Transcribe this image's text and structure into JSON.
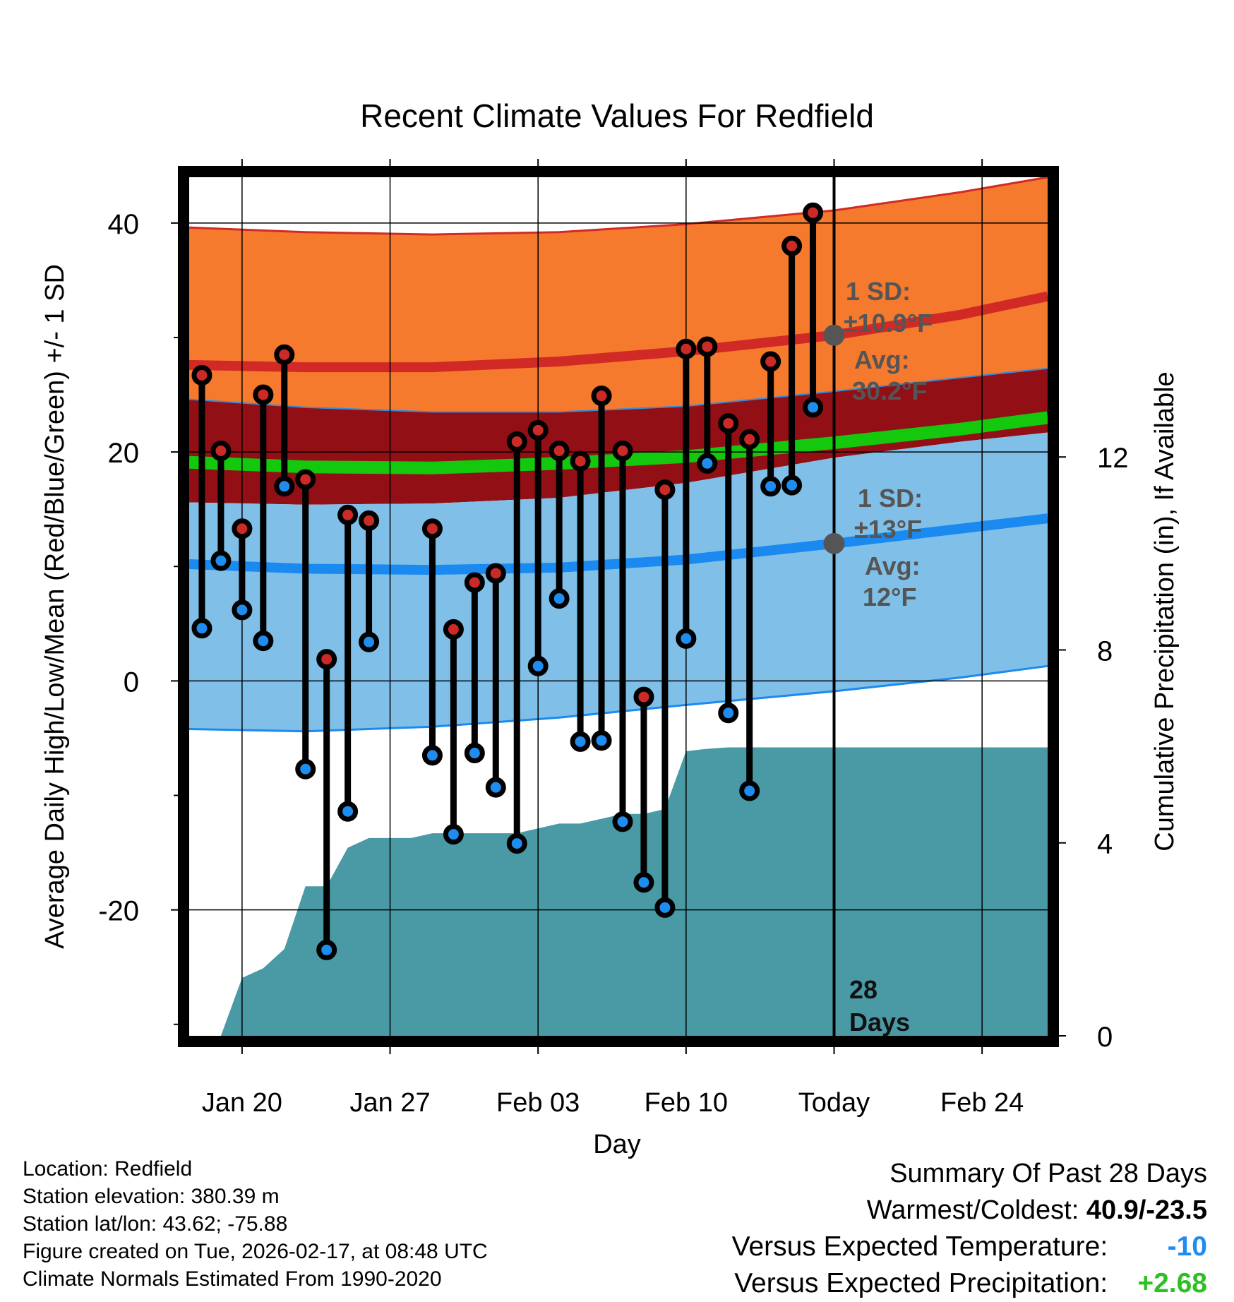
{
  "chart_data": {
    "type": "line",
    "title": "Recent Climate Values For Redfield",
    "xlabel": "Day",
    "ylabel": "Average Daily High/Low/Mean (Red/Blue/Green) +/- 1 SD",
    "y2label": "Cumulative Precipitation (in), If Available",
    "ylim": [
      -31,
      44
    ],
    "y2lim": [
      0,
      17.8
    ],
    "yticks": [
      -20,
      0,
      20,
      40
    ],
    "y2ticks": [
      0,
      4,
      8,
      12
    ],
    "xlim": [
      -2.5,
      38.1
    ],
    "xticks": [
      {
        "x": 0,
        "label": "Jan 20"
      },
      {
        "x": 7,
        "label": "Jan 27"
      },
      {
        "x": 14,
        "label": "Feb 03"
      },
      {
        "x": 21,
        "label": "Feb 10"
      },
      {
        "x": 28,
        "label": "Today"
      },
      {
        "x": 35,
        "label": "Feb 24"
      }
    ],
    "today_x": 28,
    "normals": {
      "x": [
        -2.5,
        3,
        9,
        15,
        21,
        28,
        34,
        38.1
      ],
      "high_avg": [
        27.6,
        27.4,
        27.4,
        27.9,
        28.8,
        30.2,
        32.0,
        33.6
      ],
      "high_sd_upper": [
        39.6,
        39.2,
        39.0,
        39.2,
        39.9,
        41.1,
        42.7,
        44.0
      ],
      "high_sd_lower": [
        24.6,
        23.9,
        23.5,
        23.5,
        24.0,
        25.3,
        26.5,
        27.3
      ],
      "mean_avg": [
        19.1,
        18.7,
        18.6,
        19.0,
        19.6,
        20.8,
        22.0,
        23.0
      ],
      "low_avg": [
        10.2,
        9.8,
        9.7,
        9.9,
        10.6,
        12.0,
        13.3,
        14.2
      ],
      "low_sd_upper": [
        15.6,
        15.4,
        15.5,
        16.0,
        17.3,
        19.5,
        20.9,
        21.7
      ],
      "low_sd_lower": [
        -4.2,
        -4.4,
        -4.0,
        -3.2,
        -2.1,
        -0.9,
        0.3,
        1.3
      ]
    },
    "series": [
      {
        "name": "Daily High",
        "color": "#cc2a26",
        "x": [
          -1.9,
          -1,
          0,
          1,
          2,
          3,
          4,
          5,
          6,
          9,
          10,
          11,
          12,
          13,
          14,
          15,
          16,
          17,
          18,
          19,
          20,
          21,
          22,
          23,
          24,
          25,
          26,
          27
        ],
        "values": [
          26.7,
          20.1,
          13.3,
          25.0,
          28.5,
          17.6,
          1.9,
          14.5,
          14.0,
          13.3,
          4.5,
          8.6,
          9.4,
          20.9,
          21.9,
          20.1,
          19.2,
          24.9,
          20.1,
          -1.4,
          16.7,
          29.0,
          29.2,
          22.5,
          21.1,
          27.9,
          38.0,
          40.9
        ]
      },
      {
        "name": "Daily Low",
        "color": "#1f8cf0",
        "x": [
          -1.9,
          -1,
          0,
          1,
          2,
          3,
          4,
          5,
          6,
          9,
          10,
          11,
          12,
          13,
          14,
          15,
          16,
          17,
          18,
          19,
          20,
          21,
          22,
          23,
          24,
          25,
          26,
          27
        ],
        "values": [
          4.6,
          10.5,
          6.2,
          3.5,
          17.0,
          -7.7,
          -23.5,
          -11.4,
          3.4,
          -6.5,
          -13.4,
          -6.3,
          -9.3,
          -14.2,
          1.3,
          7.2,
          -5.3,
          -5.2,
          -12.3,
          -17.6,
          -19.8,
          3.7,
          19.0,
          -2.8,
          -9.6,
          17.0,
          17.1,
          23.9
        ]
      },
      {
        "name": "Cumulative Precipitation",
        "color": "#4a9aa5",
        "x": [
          -1,
          0,
          1,
          2,
          3,
          4,
          5,
          6,
          7,
          8,
          9,
          10,
          11,
          12,
          13,
          14,
          15,
          16,
          17,
          18,
          19,
          20,
          21,
          22,
          23,
          24,
          25,
          26,
          27,
          28,
          38.1
        ],
        "values": [
          0,
          1.2,
          1.4,
          1.8,
          3.1,
          3.1,
          3.9,
          4.1,
          4.1,
          4.1,
          4.2,
          4.2,
          4.2,
          4.2,
          4.2,
          4.3,
          4.4,
          4.4,
          4.5,
          4.6,
          4.6,
          4.7,
          5.9,
          5.95,
          5.98,
          5.98,
          5.98,
          5.98,
          5.98,
          5.98,
          5.98
        ]
      }
    ],
    "annotations": {
      "high_sd_label": "1 SD:",
      "high_sd_value": "±10.9°F",
      "high_avg_label": "Avg:",
      "high_avg_value": "30.2°F",
      "low_sd_label": "1 SD:",
      "low_sd_value": "±13°F",
      "low_avg_label": "Avg:",
      "low_avg_value": "12°F",
      "days_number": "28",
      "days_label": "Days",
      "high_today_avg": 30.2,
      "low_today_avg": 12
    },
    "colors": {
      "high_band": "#f57a2e",
      "high_line": "#d12a26",
      "mid_band": "#930f16",
      "mean_line": "#14c80e",
      "low_band": "#80c0e8",
      "low_line": "#1a8af0",
      "precip": "#4a9aa5",
      "label_gray": "#555555"
    }
  },
  "metadata_lines": [
    "Location: Redfield",
    "Station elevation: 380.39 m",
    "Station lat/lon: 43.62; -75.88",
    "Figure created on Tue, 2026-02-17, at 08:48 UTC",
    "Climate Normals Estimated From 1990-2020"
  ],
  "summary": {
    "title": "Summary Of Past 28 Days",
    "warm_cold_label": "Warmest/Coldest:",
    "warm_cold_value": "40.9/-23.5",
    "temp_label": "Versus Expected Temperature:",
    "temp_value": "-10",
    "temp_color": "#1f8cf0",
    "precip_label": "Versus Expected Precipitation:",
    "precip_value": "+2.68",
    "precip_color": "#2cc021"
  }
}
